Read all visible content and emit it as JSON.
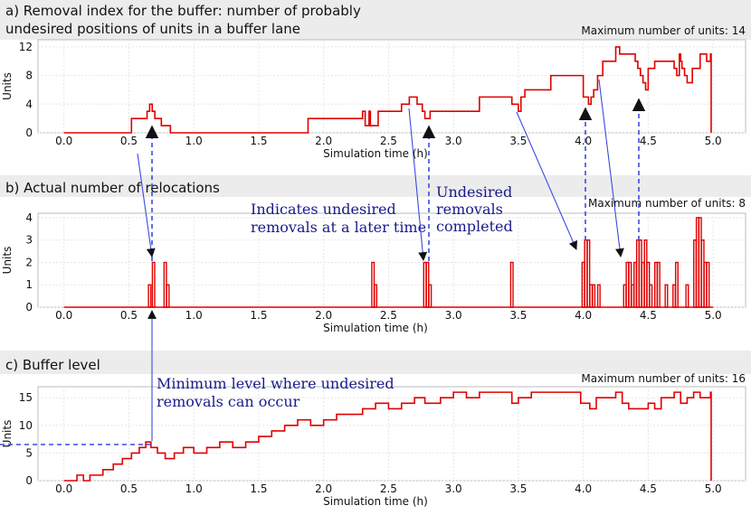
{
  "chart_data": [
    {
      "type": "line",
      "step": true,
      "title": "a) Removal index for the buffer: number of  probably undesired positions of units in a buffer lane",
      "title_lines": [
        "a) Removal index for the buffer: number of  probably",
        "undesired positions of units in a buffer lane"
      ],
      "note": "Maximum number of units: 14",
      "xlabel": "Simulation time (h)",
      "ylabel": "Units",
      "xlim": [
        -0.2,
        5.25
      ],
      "ylim": [
        0,
        13
      ],
      "xticks": [
        "0.0",
        "0.5",
        "1.0",
        "1.5",
        "2.0",
        "2.5",
        "3.0",
        "3.5",
        "4.0",
        "4.5",
        "5.0"
      ],
      "yticks": [
        "0",
        "4",
        "8",
        "12"
      ],
      "grid": true,
      "series_color": "#e00000",
      "x": [
        0.0,
        0.52,
        0.64,
        0.66,
        0.68,
        0.7,
        0.75,
        0.82,
        1.88,
        2.3,
        2.32,
        2.35,
        2.36,
        2.42,
        2.45,
        2.6,
        2.66,
        2.72,
        2.76,
        2.78,
        2.82,
        2.84,
        3.2,
        3.45,
        3.5,
        3.52,
        3.55,
        3.75,
        3.95,
        4.0,
        4.0,
        4.04,
        4.06,
        4.08,
        4.11,
        4.15,
        4.25,
        4.28,
        4.4,
        4.42,
        4.44,
        4.46,
        4.48,
        4.5,
        4.55,
        4.7,
        4.72,
        4.74,
        4.75,
        4.76,
        4.78,
        4.8,
        4.84,
        4.9,
        4.95,
        4.98,
        4.985
      ],
      "y": [
        0,
        2,
        3,
        4,
        3,
        2,
        1,
        0,
        2,
        3,
        1,
        3,
        1,
        3,
        3,
        4,
        5,
        4,
        3,
        2,
        3,
        3,
        5,
        4,
        3,
        5,
        6,
        8,
        8,
        6,
        5,
        4,
        5,
        6,
        8,
        10,
        12,
        11,
        10,
        9,
        8,
        7,
        6,
        9,
        10,
        9,
        8,
        11,
        10,
        9,
        8,
        7,
        9,
        11,
        10,
        11,
        0
      ]
    },
    {
      "type": "bar",
      "title": "b) Actual number of relocations",
      "note": "Maximum number of units: 8",
      "xlabel": "Simulation time (h)",
      "ylabel": "Units",
      "xlim": [
        -0.2,
        5.25
      ],
      "ylim": [
        0,
        4.2
      ],
      "xticks": [
        "0.0",
        "0.5",
        "1.0",
        "1.5",
        "2.0",
        "2.5",
        "3.0",
        "3.5",
        "4.0",
        "4.5",
        "5.0"
      ],
      "yticks": [
        "0",
        "1",
        "2",
        "3",
        "4"
      ],
      "grid": true,
      "series_color": "#e00000",
      "x": [
        0.66,
        0.69,
        0.78,
        0.8,
        2.38,
        2.4,
        2.78,
        2.8,
        2.82,
        3.45,
        4.0,
        4.02,
        4.04,
        4.06,
        4.08,
        4.12,
        4.32,
        4.34,
        4.36,
        4.38,
        4.4,
        4.42,
        4.44,
        4.46,
        4.48,
        4.5,
        4.52,
        4.56,
        4.58,
        4.64,
        4.7,
        4.72,
        4.8,
        4.86,
        4.88,
        4.9,
        4.92,
        4.94,
        4.96
      ],
      "y": [
        1,
        2,
        2,
        1,
        2,
        1,
        2,
        2,
        1,
        2,
        2,
        3,
        3,
        1,
        1,
        1,
        1,
        2,
        2,
        1,
        2,
        3,
        3,
        2,
        3,
        2,
        1,
        2,
        2,
        1,
        1,
        2,
        1,
        3,
        4,
        4,
        3,
        2,
        2
      ]
    },
    {
      "type": "line",
      "step": true,
      "title": "c) Buffer level",
      "note": "Maximum number of units: 16",
      "xlabel": "Simulation time (h)",
      "ylabel": "Units",
      "xlim": [
        -0.2,
        5.25
      ],
      "ylim": [
        0,
        17
      ],
      "xticks": [
        "0.0",
        "0.5",
        "1.0",
        "1.5",
        "2.0",
        "2.5",
        "3.0",
        "3.5",
        "4.0",
        "4.5",
        "5.0"
      ],
      "yticks": [
        "0",
        "5",
        "10",
        "15"
      ],
      "grid": true,
      "series_color": "#e00000",
      "x": [
        0.0,
        0.1,
        0.15,
        0.2,
        0.3,
        0.38,
        0.45,
        0.52,
        0.58,
        0.63,
        0.67,
        0.72,
        0.78,
        0.85,
        0.92,
        1.0,
        1.1,
        1.2,
        1.3,
        1.4,
        1.5,
        1.6,
        1.7,
        1.8,
        1.9,
        2.0,
        2.1,
        2.2,
        2.3,
        2.4,
        2.5,
        2.6,
        2.7,
        2.78,
        2.9,
        3.0,
        3.1,
        3.2,
        3.35,
        3.45,
        3.5,
        3.6,
        3.75,
        3.9,
        3.98,
        4.05,
        4.1,
        4.25,
        4.3,
        4.35,
        4.45,
        4.5,
        4.55,
        4.6,
        4.7,
        4.75,
        4.8,
        4.85,
        4.9,
        4.98,
        4.985
      ],
      "y": [
        0,
        1,
        0,
        1,
        2,
        3,
        4,
        5,
        6,
        7,
        6,
        5,
        4,
        5,
        6,
        5,
        6,
        7,
        6,
        7,
        8,
        9,
        10,
        11,
        10,
        11,
        12,
        12,
        13,
        14,
        13,
        14,
        15,
        14,
        15,
        16,
        15,
        16,
        16,
        14,
        15,
        16,
        16,
        16,
        14,
        13,
        15,
        16,
        14,
        13,
        13,
        14,
        13,
        15,
        16,
        14,
        15,
        16,
        15,
        16,
        0
      ]
    }
  ],
  "annotations": {
    "indicates_1": "Indicates undesired",
    "indicates_2": "removals at a later time",
    "undesired_1": "Undesired",
    "undesired_2": "removals",
    "undesired_3": "completed",
    "minimum_1": "Minimum level where undesired",
    "minimum_2": "removals can occur"
  }
}
